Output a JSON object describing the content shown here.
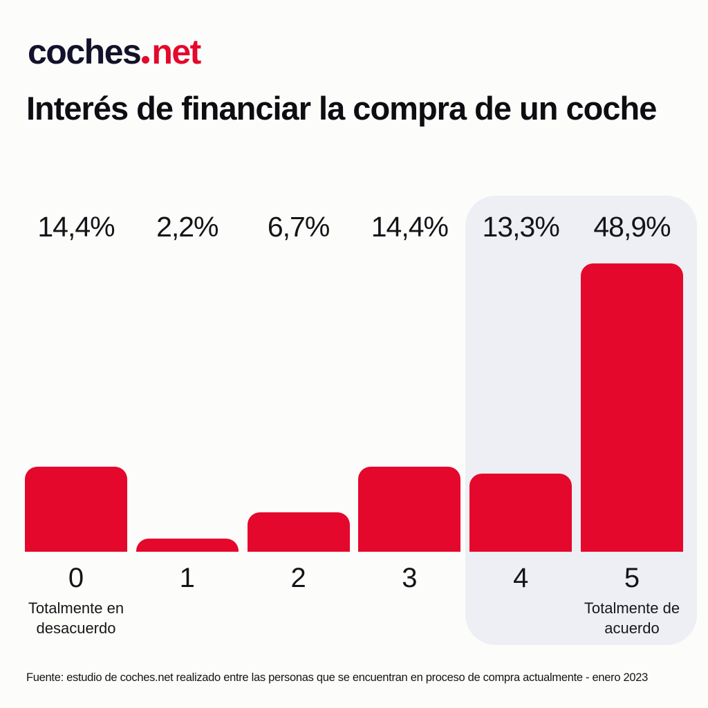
{
  "page": {
    "background": "#FCFCFA",
    "footer": "Fuente: estudio de coches.net realizado entre las personas que se encuentran en proceso de compra actualmente - enero 2023"
  },
  "logo": {
    "part1": "coches",
    "part2": "net",
    "navy": "#12122B",
    "red": "#E4082C"
  },
  "title": "Interés de financiar la compra de un coche",
  "chart_data": {
    "type": "bar",
    "title": "Interés de financiar la compra de un coche",
    "categories": [
      "0",
      "1",
      "2",
      "3",
      "4",
      "5"
    ],
    "values": [
      14.4,
      2.2,
      6.7,
      14.4,
      13.3,
      48.9
    ],
    "value_labels": [
      "14,4%",
      "2,2%",
      "6,7%",
      "14,4%",
      "13,3%",
      "48,9%"
    ],
    "category_sublabels": [
      "Totalmente en\ndesacuerdo",
      "",
      "",
      "",
      "",
      "Totalmente de\nacuerdo"
    ],
    "xlabel": "",
    "ylabel": "",
    "ylim": [
      0,
      50
    ],
    "grid": false,
    "legend": false,
    "bar_color": "#E4082C",
    "highlight": {
      "columns": [
        "4",
        "5"
      ],
      "color": "#EDEFF4"
    }
  }
}
